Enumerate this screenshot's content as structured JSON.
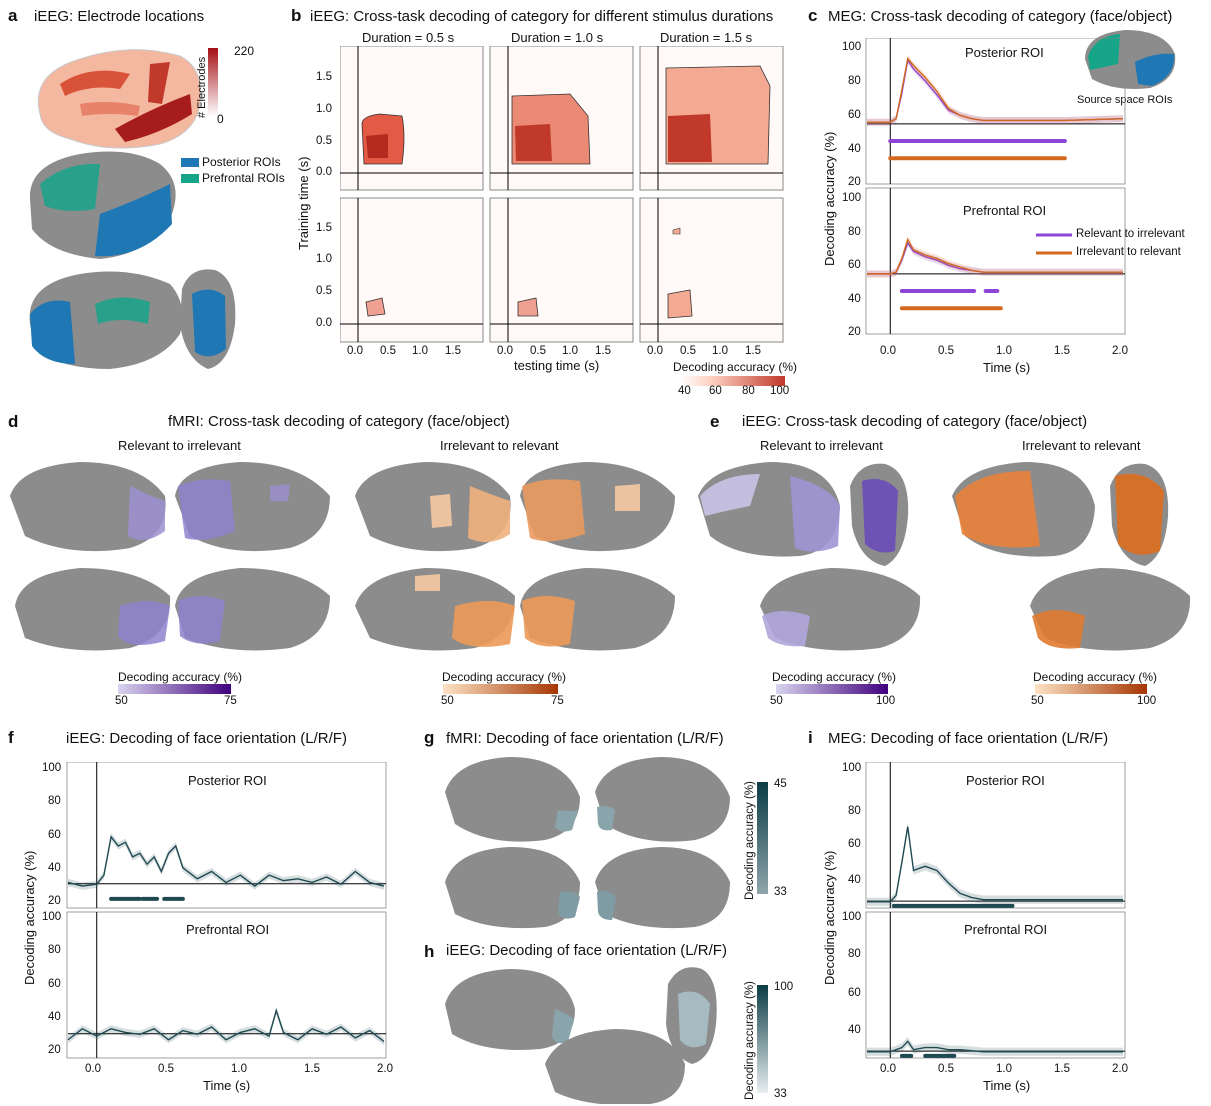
{
  "panels": {
    "a": {
      "letter": "a",
      "title": "iEEG: Electrode locations",
      "cbar_max": "220",
      "cbar_min": "0",
      "cbar_label": "# Electrodes",
      "legend_posterior": "Posterior ROIs",
      "legend_prefrontal": "Prefrontal ROIs"
    },
    "b": {
      "letter": "b",
      "title": "iEEG: Cross-task decoding of category for different stimulus durations",
      "durations": [
        "Duration = 0.5 s",
        "Duration = 1.0 s",
        "Duration = 1.5 s"
      ],
      "ylabel": "Training time (s)",
      "xlabel": "testing time (s)",
      "yticks": [
        "1.5",
        "1.0",
        "0.5",
        "0.0"
      ],
      "xticks": [
        "0.0",
        "0.5",
        "1.0",
        "1.5"
      ],
      "cbar_label": "Decoding accuracy (%)",
      "cbar_ticks": [
        "40",
        "60",
        "80",
        "100"
      ]
    },
    "c": {
      "letter": "c",
      "title": "MEG: Cross-task decoding of category (face/object)",
      "roi_top": "Posterior ROI",
      "roi_bottom": "Prefrontal ROI",
      "inset_label": "Source space ROIs",
      "legend": [
        "Relevant to irrelevant",
        "Irrelevant to relevant"
      ],
      "ylabel": "Decoding accuracy (%)",
      "xlabel": "Time (s)",
      "yticks_top": [
        "100",
        "80",
        "60",
        "40",
        "20"
      ],
      "yticks_bottom": [
        "100",
        "80",
        "60",
        "40",
        "20"
      ],
      "xticks": [
        "0.0",
        "0.5",
        "1.0",
        "1.5",
        "2.0"
      ]
    },
    "d": {
      "letter": "d",
      "title": "fMRI: Cross-task decoding of category (face/object)",
      "sub_left": "Relevant to irrelevant",
      "sub_right": "Irrelevant to relevant",
      "cbar_left": {
        "label": "Decoding accuracy (%)",
        "min": "50",
        "max": "75"
      },
      "cbar_right": {
        "label": "Decoding accuracy (%)",
        "min": "50",
        "max": "75"
      }
    },
    "e": {
      "letter": "e",
      "title": "iEEG: Cross-task decoding of category (face/object)",
      "sub_left": "Relevant to irrelevant",
      "sub_right": "Irrelevant to relevant",
      "cbar_left": {
        "label": "Decoding accuracy (%)",
        "min": "50",
        "max": "100"
      },
      "cbar_right": {
        "label": "Decoding accuracy (%)",
        "min": "50",
        "max": "100"
      }
    },
    "f": {
      "letter": "f",
      "title": "iEEG: Decoding of face orientation (L/R/F)",
      "roi_top": "Posterior ROI",
      "roi_bottom": "Prefrontal ROI",
      "ylabel": "Decoding accuracy (%)",
      "xlabel": "Time (s)",
      "yticks_top": [
        "100",
        "80",
        "60",
        "40",
        "20"
      ],
      "yticks_bottom": [
        "100",
        "80",
        "60",
        "40",
        "20"
      ],
      "xticks": [
        "0.0",
        "0.5",
        "1.0",
        "1.5",
        "2.0"
      ]
    },
    "g": {
      "letter": "g",
      "title": "fMRI: Decoding of face orientation (L/R/F)",
      "cbar_label": "Decoding accuracy (%)",
      "cbar_max": "45",
      "cbar_min": "33"
    },
    "h": {
      "letter": "h",
      "title": "iEEG: Decoding of face orientation (L/R/F)",
      "cbar_label": "Decoding accuracy (%)",
      "cbar_max": "100",
      "cbar_min": "33"
    },
    "i": {
      "letter": "i",
      "title": "MEG: Decoding of face orientation (L/R/F)",
      "roi_top": "Posterior ROI",
      "roi_bottom": "Prefrontal ROI",
      "ylabel": "Decoding accuracy (%)",
      "xlabel": "Time (s)",
      "yticks_top": [
        "100",
        "80",
        "60",
        "40"
      ],
      "yticks_bottom": [
        "100",
        "80",
        "60",
        "40"
      ],
      "xticks": [
        "0.0",
        "0.5",
        "1.0",
        "1.5",
        "2.0"
      ]
    }
  },
  "colors": {
    "purple": "#8e44d6",
    "orange": "#d2691e",
    "teal": "#1f4a52",
    "roi_blue": "#1f77b4",
    "roi_green": "#17a589",
    "brain_gray": "#8c8c8c"
  },
  "chart_data": [
    {
      "panel": "c",
      "type": "line",
      "roi": "Posterior ROI",
      "ylim": [
        15,
        100
      ],
      "xlim": [
        -0.2,
        2.0
      ],
      "series": [
        {
          "name": "Relevant to irrelevant",
          "x": [
            -0.2,
            0.0,
            0.05,
            0.1,
            0.15,
            0.2,
            0.3,
            0.4,
            0.5,
            0.6,
            0.7,
            0.8,
            1.0,
            1.5,
            2.0
          ],
          "values": [
            51,
            51,
            53,
            68,
            87,
            82,
            75,
            67,
            58,
            55,
            53,
            52,
            52,
            52,
            53
          ]
        },
        {
          "name": "Irrelevant to relevant",
          "x": [
            -0.2,
            0.0,
            0.05,
            0.1,
            0.15,
            0.2,
            0.3,
            0.4,
            0.5,
            0.6,
            0.7,
            0.8,
            1.0,
            1.5,
            2.0
          ],
          "values": [
            51,
            51,
            53,
            70,
            88,
            84,
            77,
            69,
            59,
            55,
            53,
            52,
            52,
            52,
            53
          ]
        }
      ],
      "significance": [
        {
          "name": "Relevant to irrelevant",
          "range": [
            0.0,
            1.5
          ]
        },
        {
          "name": "Irrelevant to relevant",
          "range": [
            0.0,
            1.5
          ]
        }
      ]
    },
    {
      "panel": "c",
      "type": "line",
      "roi": "Prefrontal ROI",
      "ylim": [
        15,
        100
      ],
      "xlim": [
        -0.2,
        2.0
      ],
      "series": [
        {
          "name": "Relevant to irrelevant",
          "x": [
            -0.2,
            0.0,
            0.05,
            0.1,
            0.15,
            0.2,
            0.3,
            0.4,
            0.5,
            0.6,
            0.7,
            0.8,
            1.0,
            1.5,
            2.0
          ],
          "values": [
            50,
            50,
            51,
            58,
            68,
            63,
            60,
            58,
            55,
            53,
            52,
            51,
            51,
            51,
            51
          ]
        },
        {
          "name": "Irrelevant to relevant",
          "x": [
            -0.2,
            0.0,
            0.05,
            0.1,
            0.15,
            0.2,
            0.3,
            0.4,
            0.5,
            0.6,
            0.7,
            0.8,
            1.0,
            1.5,
            2.0
          ],
          "values": [
            50,
            50,
            51,
            59,
            70,
            64,
            61,
            59,
            56,
            54,
            52,
            51,
            51,
            51,
            51
          ]
        }
      ],
      "significance": [
        {
          "name": "Relevant to irrelevant",
          "range": [
            0.1,
            0.72
          ]
        },
        {
          "name": "Relevant to irrelevant",
          "range": [
            0.82,
            0.92
          ]
        },
        {
          "name": "Irrelevant to relevant",
          "range": [
            0.1,
            0.95
          ]
        }
      ]
    },
    {
      "panel": "f",
      "type": "line",
      "roi": "Posterior ROI",
      "ylim": [
        20,
        100
      ],
      "xlim": [
        -0.2,
        2.0
      ],
      "chance": 33.3,
      "series": [
        {
          "name": "",
          "x": [
            -0.2,
            -0.1,
            0.0,
            0.05,
            0.1,
            0.15,
            0.2,
            0.25,
            0.3,
            0.35,
            0.4,
            0.45,
            0.5,
            0.55,
            0.6,
            0.7,
            0.8,
            0.9,
            1.0,
            1.1,
            1.2,
            1.3,
            1.4,
            1.5,
            1.6,
            1.7,
            1.8,
            1.9,
            2.0
          ],
          "values": [
            34,
            32,
            33,
            38,
            59,
            54,
            56,
            48,
            50,
            44,
            48,
            40,
            50,
            54,
            42,
            36,
            40,
            34,
            38,
            32,
            38,
            35,
            36,
            34,
            37,
            33,
            40,
            34,
            32
          ]
        }
      ],
      "significance": [
        {
          "range": [
            0.1,
            0.3
          ]
        },
        {
          "range": [
            0.32,
            0.42
          ]
        },
        {
          "range": [
            0.47,
            0.6
          ]
        }
      ]
    },
    {
      "panel": "f",
      "type": "line",
      "roi": "Prefrontal ROI",
      "ylim": [
        20,
        100
      ],
      "xlim": [
        -0.2,
        2.0
      ],
      "chance": 33.3,
      "series": [
        {
          "name": "",
          "x": [
            -0.2,
            -0.1,
            0.0,
            0.1,
            0.2,
            0.3,
            0.4,
            0.5,
            0.6,
            0.7,
            0.8,
            0.9,
            1.0,
            1.1,
            1.2,
            1.25,
            1.3,
            1.4,
            1.5,
            1.6,
            1.7,
            1.8,
            1.9,
            2.0
          ],
          "values": [
            30,
            36,
            32,
            36,
            34,
            33,
            36,
            30,
            35,
            33,
            37,
            30,
            34,
            36,
            32,
            46,
            34,
            30,
            36,
            33,
            37,
            31,
            35,
            29
          ]
        }
      ]
    },
    {
      "panel": "i",
      "type": "line",
      "roi": "Posterior ROI",
      "ylim": [
        30,
        100
      ],
      "xlim": [
        -0.2,
        2.0
      ],
      "chance": 33.3,
      "series": [
        {
          "name": "",
          "x": [
            -0.2,
            0.0,
            0.05,
            0.1,
            0.15,
            0.2,
            0.3,
            0.4,
            0.5,
            0.6,
            0.7,
            0.8,
            1.0,
            1.5,
            2.0
          ],
          "values": [
            33,
            33,
            36,
            52,
            69,
            48,
            50,
            48,
            42,
            37,
            35,
            34,
            34,
            34,
            34
          ]
        }
      ],
      "significance": [
        {
          "range": [
            0.03,
            1.05
          ]
        }
      ]
    },
    {
      "panel": "i",
      "type": "line",
      "roi": "Prefrontal ROI",
      "ylim": [
        30,
        100
      ],
      "xlim": [
        -0.2,
        2.0
      ],
      "chance": 33.3,
      "series": [
        {
          "name": "",
          "x": [
            -0.2,
            0.0,
            0.05,
            0.1,
            0.15,
            0.2,
            0.3,
            0.4,
            0.5,
            0.6,
            0.8,
            1.0,
            1.5,
            2.0
          ],
          "values": [
            33,
            33,
            34,
            35,
            38,
            34,
            35,
            35,
            34,
            34,
            33,
            33,
            33,
            33
          ]
        }
      ],
      "significance": [
        {
          "range": [
            0.1,
            0.18
          ]
        },
        {
          "range": [
            0.3,
            0.55
          ]
        }
      ]
    }
  ]
}
